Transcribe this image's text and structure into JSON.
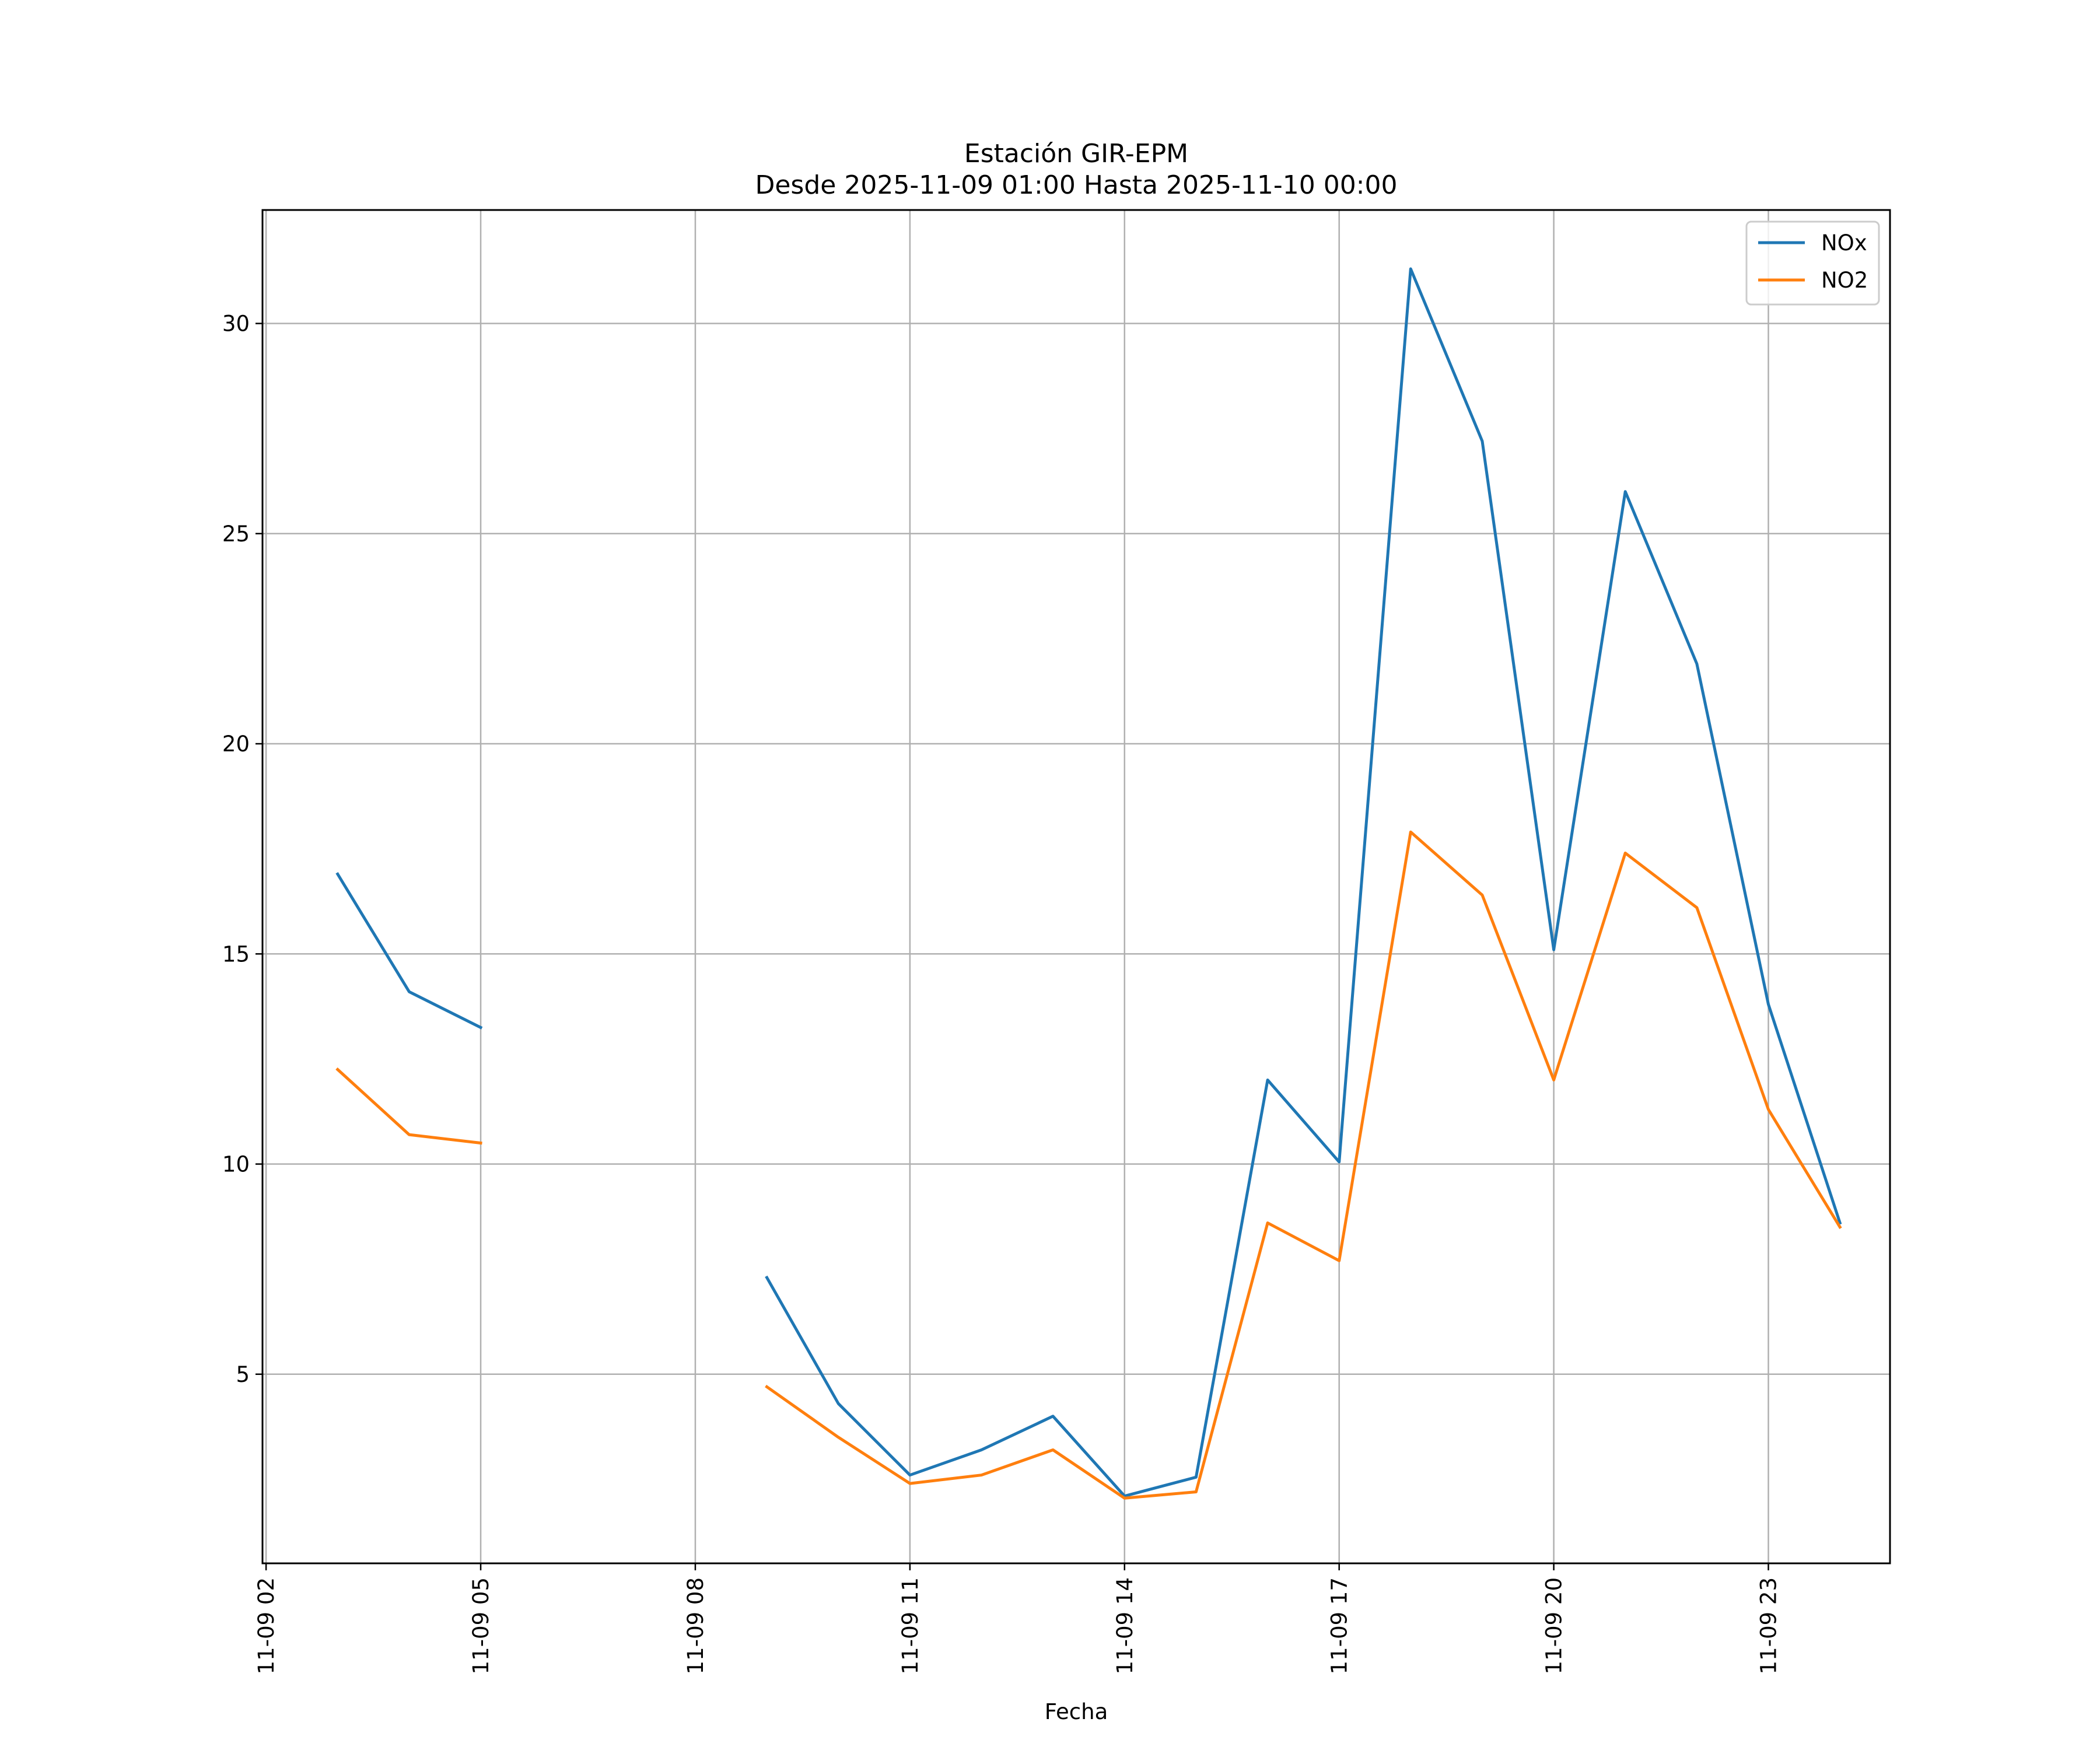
{
  "chart_data": {
    "type": "line",
    "title": "Estación GIR-EPM",
    "subtitle": "Desde 2025-11-09 01:00 Hasta 2025-11-10 00:00",
    "xlabel": "Fecha",
    "ylabel": "",
    "x_ticks": [
      "11-09 02",
      "11-09 05",
      "11-09 08",
      "11-09 11",
      "11-09 14",
      "11-09 17",
      "11-09 20",
      "11-09 23"
    ],
    "x_tick_hours": [
      2,
      5,
      8,
      11,
      14,
      17,
      20,
      23
    ],
    "y_ticks": [
      5,
      10,
      15,
      20,
      25,
      30
    ],
    "xlim": [
      "2025-11-09 01:57",
      "2025-11-10 00:42"
    ],
    "ylim": [
      0.5,
      32.7
    ],
    "grid": true,
    "legend_position": "upper right",
    "x": [
      "2025-11-09 01:00",
      "2025-11-09 02:00",
      "2025-11-09 03:00",
      "2025-11-09 04:00",
      "2025-11-09 05:00",
      "2025-11-09 06:00",
      "2025-11-09 07:00",
      "2025-11-09 08:00",
      "2025-11-09 09:00",
      "2025-11-09 10:00",
      "2025-11-09 11:00",
      "2025-11-09 12:00",
      "2025-11-09 13:00",
      "2025-11-09 14:00",
      "2025-11-09 15:00",
      "2025-11-09 16:00",
      "2025-11-09 17:00",
      "2025-11-09 18:00",
      "2025-11-09 19:00",
      "2025-11-09 20:00",
      "2025-11-09 21:00",
      "2025-11-09 22:00",
      "2025-11-09 23:00",
      "2025-11-10 00:00"
    ],
    "series": [
      {
        "name": "NOx",
        "color": "#1f77b4",
        "values": [
          null,
          null,
          16.9,
          14.1,
          13.25,
          null,
          null,
          null,
          7.3,
          4.3,
          2.6,
          3.2,
          4.0,
          2.1,
          2.55,
          12.0,
          10.05,
          31.3,
          27.2,
          15.1,
          26.0,
          21.9,
          13.8,
          8.6
        ]
      },
      {
        "name": "NO2",
        "color": "#ff7f0e",
        "values": [
          null,
          null,
          12.25,
          10.7,
          10.5,
          null,
          null,
          null,
          4.7,
          3.5,
          2.4,
          2.6,
          3.2,
          2.05,
          2.2,
          8.6,
          7.7,
          17.9,
          16.4,
          12.0,
          17.4,
          16.1,
          11.3,
          8.5
        ]
      }
    ]
  }
}
